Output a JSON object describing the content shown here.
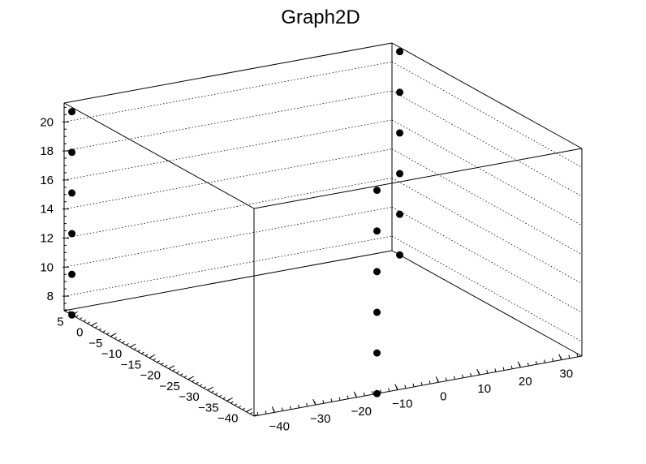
{
  "chart_data": {
    "type": "scatter",
    "title": "Graph2D",
    "xlabel": "",
    "ylabel": "",
    "zlabel": "",
    "xlim": [
      -45,
      35
    ],
    "ylim": [
      -42,
      7
    ],
    "zlim": [
      7,
      21.3
    ],
    "x_ticks": [
      "−40",
      "−30",
      "−20",
      "−10",
      "0",
      "10",
      "20",
      "30"
    ],
    "y_ticks": [
      "5",
      "0",
      "−5",
      "−10",
      "−15",
      "−20",
      "−25",
      "−30",
      "−35",
      "−40"
    ],
    "z_ticks": [
      "8",
      "10",
      "12",
      "14",
      "16",
      "18",
      "20"
    ],
    "grid": true,
    "marker_color": "#000000",
    "points": [
      {
        "x": -45,
        "y": 5,
        "z": 7
      },
      {
        "x": -45,
        "y": 5,
        "z": 9.8
      },
      {
        "x": -45,
        "y": 5,
        "z": 12.6
      },
      {
        "x": -45,
        "y": 5,
        "z": 15.4
      },
      {
        "x": -45,
        "y": 5,
        "z": 18.2
      },
      {
        "x": -45,
        "y": 5,
        "z": 21
      },
      {
        "x": 35,
        "y": 5,
        "z": 7
      },
      {
        "x": 35,
        "y": 5,
        "z": 9.8
      },
      {
        "x": 35,
        "y": 5,
        "z": 12.6
      },
      {
        "x": 35,
        "y": 5,
        "z": 15.4
      },
      {
        "x": 35,
        "y": 5,
        "z": 18.2
      },
      {
        "x": 35,
        "y": 5,
        "z": 21
      },
      {
        "x": -15,
        "y": -42,
        "z": 7
      },
      {
        "x": -15,
        "y": -42,
        "z": 9.8
      },
      {
        "x": -15,
        "y": -42,
        "z": 12.6
      },
      {
        "x": -15,
        "y": -42,
        "z": 15.4
      },
      {
        "x": -15,
        "y": -42,
        "z": 18.2
      },
      {
        "x": -15,
        "y": -42,
        "z": 21
      }
    ]
  }
}
